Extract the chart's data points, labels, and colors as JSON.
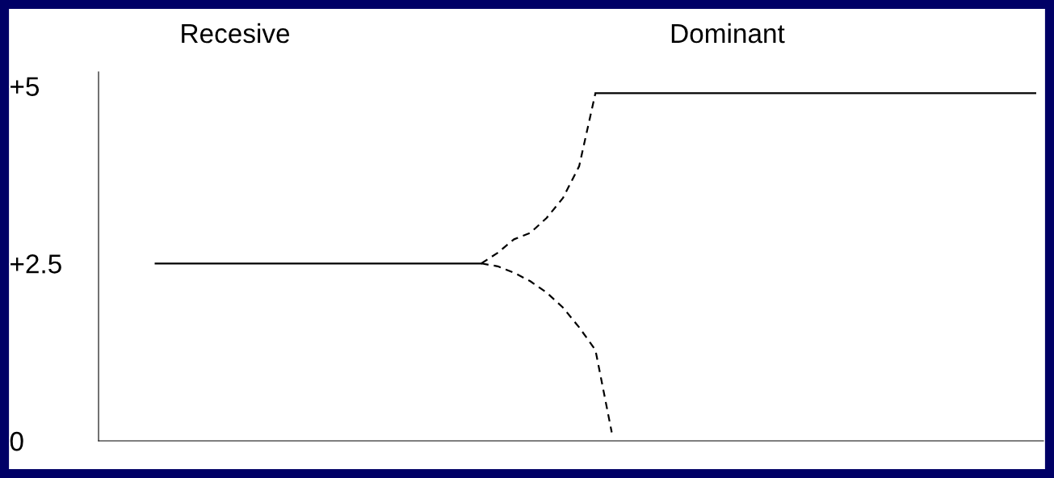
{
  "chart_data": {
    "type": "line",
    "categories": [
      null,
      null,
      null,
      null,
      null,
      null,
      null,
      null,
      null,
      null,
      null,
      null,
      null,
      null,
      null,
      null,
      null,
      null,
      null,
      null,
      null,
      null,
      null,
      null,
      null,
      null,
      null,
      null,
      null,
      null,
      null,
      null,
      null,
      null,
      null,
      null,
      null,
      null,
      null,
      null,
      null,
      null,
      null,
      null,
      null,
      null,
      null,
      null,
      null,
      null,
      null,
      null,
      null,
      null,
      null,
      null,
      null,
      null
    ],
    "series": [
      {
        "color": "#000000",
        "line_style": "solid",
        "values": [
          null,
          null,
          null,
          2.5,
          2.5,
          2.5,
          2.5,
          2.5,
          2.5,
          2.5,
          2.5,
          2.5,
          2.5,
          2.5,
          2.5,
          2.5,
          2.5,
          2.5,
          2.5,
          2.5,
          2.5,
          2.5,
          2.5,
          2.5,
          null,
          null,
          null,
          null,
          null,
          null,
          null,
          null,
          null,
          null,
          null,
          null,
          null,
          null,
          null,
          null,
          null,
          null,
          null,
          null,
          null,
          null,
          null,
          null,
          null,
          null,
          null,
          null,
          null,
          null,
          null,
          null,
          null,
          null
        ]
      },
      {
        "color": "#000000",
        "line_style": "dashed",
        "values": [
          null,
          null,
          null,
          null,
          null,
          null,
          null,
          null,
          null,
          null,
          null,
          null,
          null,
          null,
          null,
          null,
          null,
          null,
          null,
          null,
          null,
          null,
          null,
          2.5,
          2.65,
          2.84,
          2.93,
          3.14,
          3.42,
          3.87,
          4.9,
          null,
          null,
          null,
          null,
          null,
          null,
          null,
          null,
          null,
          null,
          null,
          null,
          null,
          null,
          null,
          null,
          null,
          null,
          null,
          null,
          null,
          null,
          null,
          null,
          null,
          null,
          null
        ]
      },
      {
        "color": "#000000",
        "line_style": "dashed",
        "values": [
          null,
          null,
          null,
          null,
          null,
          null,
          null,
          null,
          null,
          null,
          null,
          null,
          null,
          null,
          null,
          null,
          null,
          null,
          null,
          null,
          null,
          null,
          null,
          2.5,
          2.46,
          2.37,
          2.25,
          2.09,
          1.88,
          1.6,
          1.28,
          0.12,
          null,
          null,
          null,
          null,
          null,
          null,
          null,
          null,
          null,
          null,
          null,
          null,
          null,
          null,
          null,
          null,
          null,
          null,
          null,
          null,
          null,
          null,
          null,
          null,
          null,
          null
        ]
      },
      {
        "color": "#000000",
        "line_style": "solid",
        "values": [
          null,
          null,
          null,
          null,
          null,
          null,
          null,
          null,
          null,
          null,
          null,
          null,
          null,
          null,
          null,
          null,
          null,
          null,
          null,
          null,
          null,
          null,
          null,
          null,
          null,
          null,
          null,
          null,
          null,
          null,
          4.9,
          4.9,
          4.9,
          4.9,
          4.9,
          4.9,
          4.9,
          4.9,
          4.9,
          4.9,
          4.9,
          4.9,
          4.9,
          4.9,
          4.9,
          4.9,
          4.9,
          4.9,
          4.9,
          4.9,
          4.9,
          4.9,
          4.9,
          4.9,
          4.9,
          4.9,
          4.9,
          4.9
        ]
      }
    ],
    "ylim": [
      0,
      5.2
    ],
    "yticks": [
      0,
      {
        "value": 2.5,
        "label": "+2.5"
      },
      {
        "value": 5,
        "label": "+5"
      }
    ],
    "tick_labels": "y",
    "grid": false,
    "legend": false,
    "annotations": [
      "Recesive",
      "Dominant"
    ]
  }
}
